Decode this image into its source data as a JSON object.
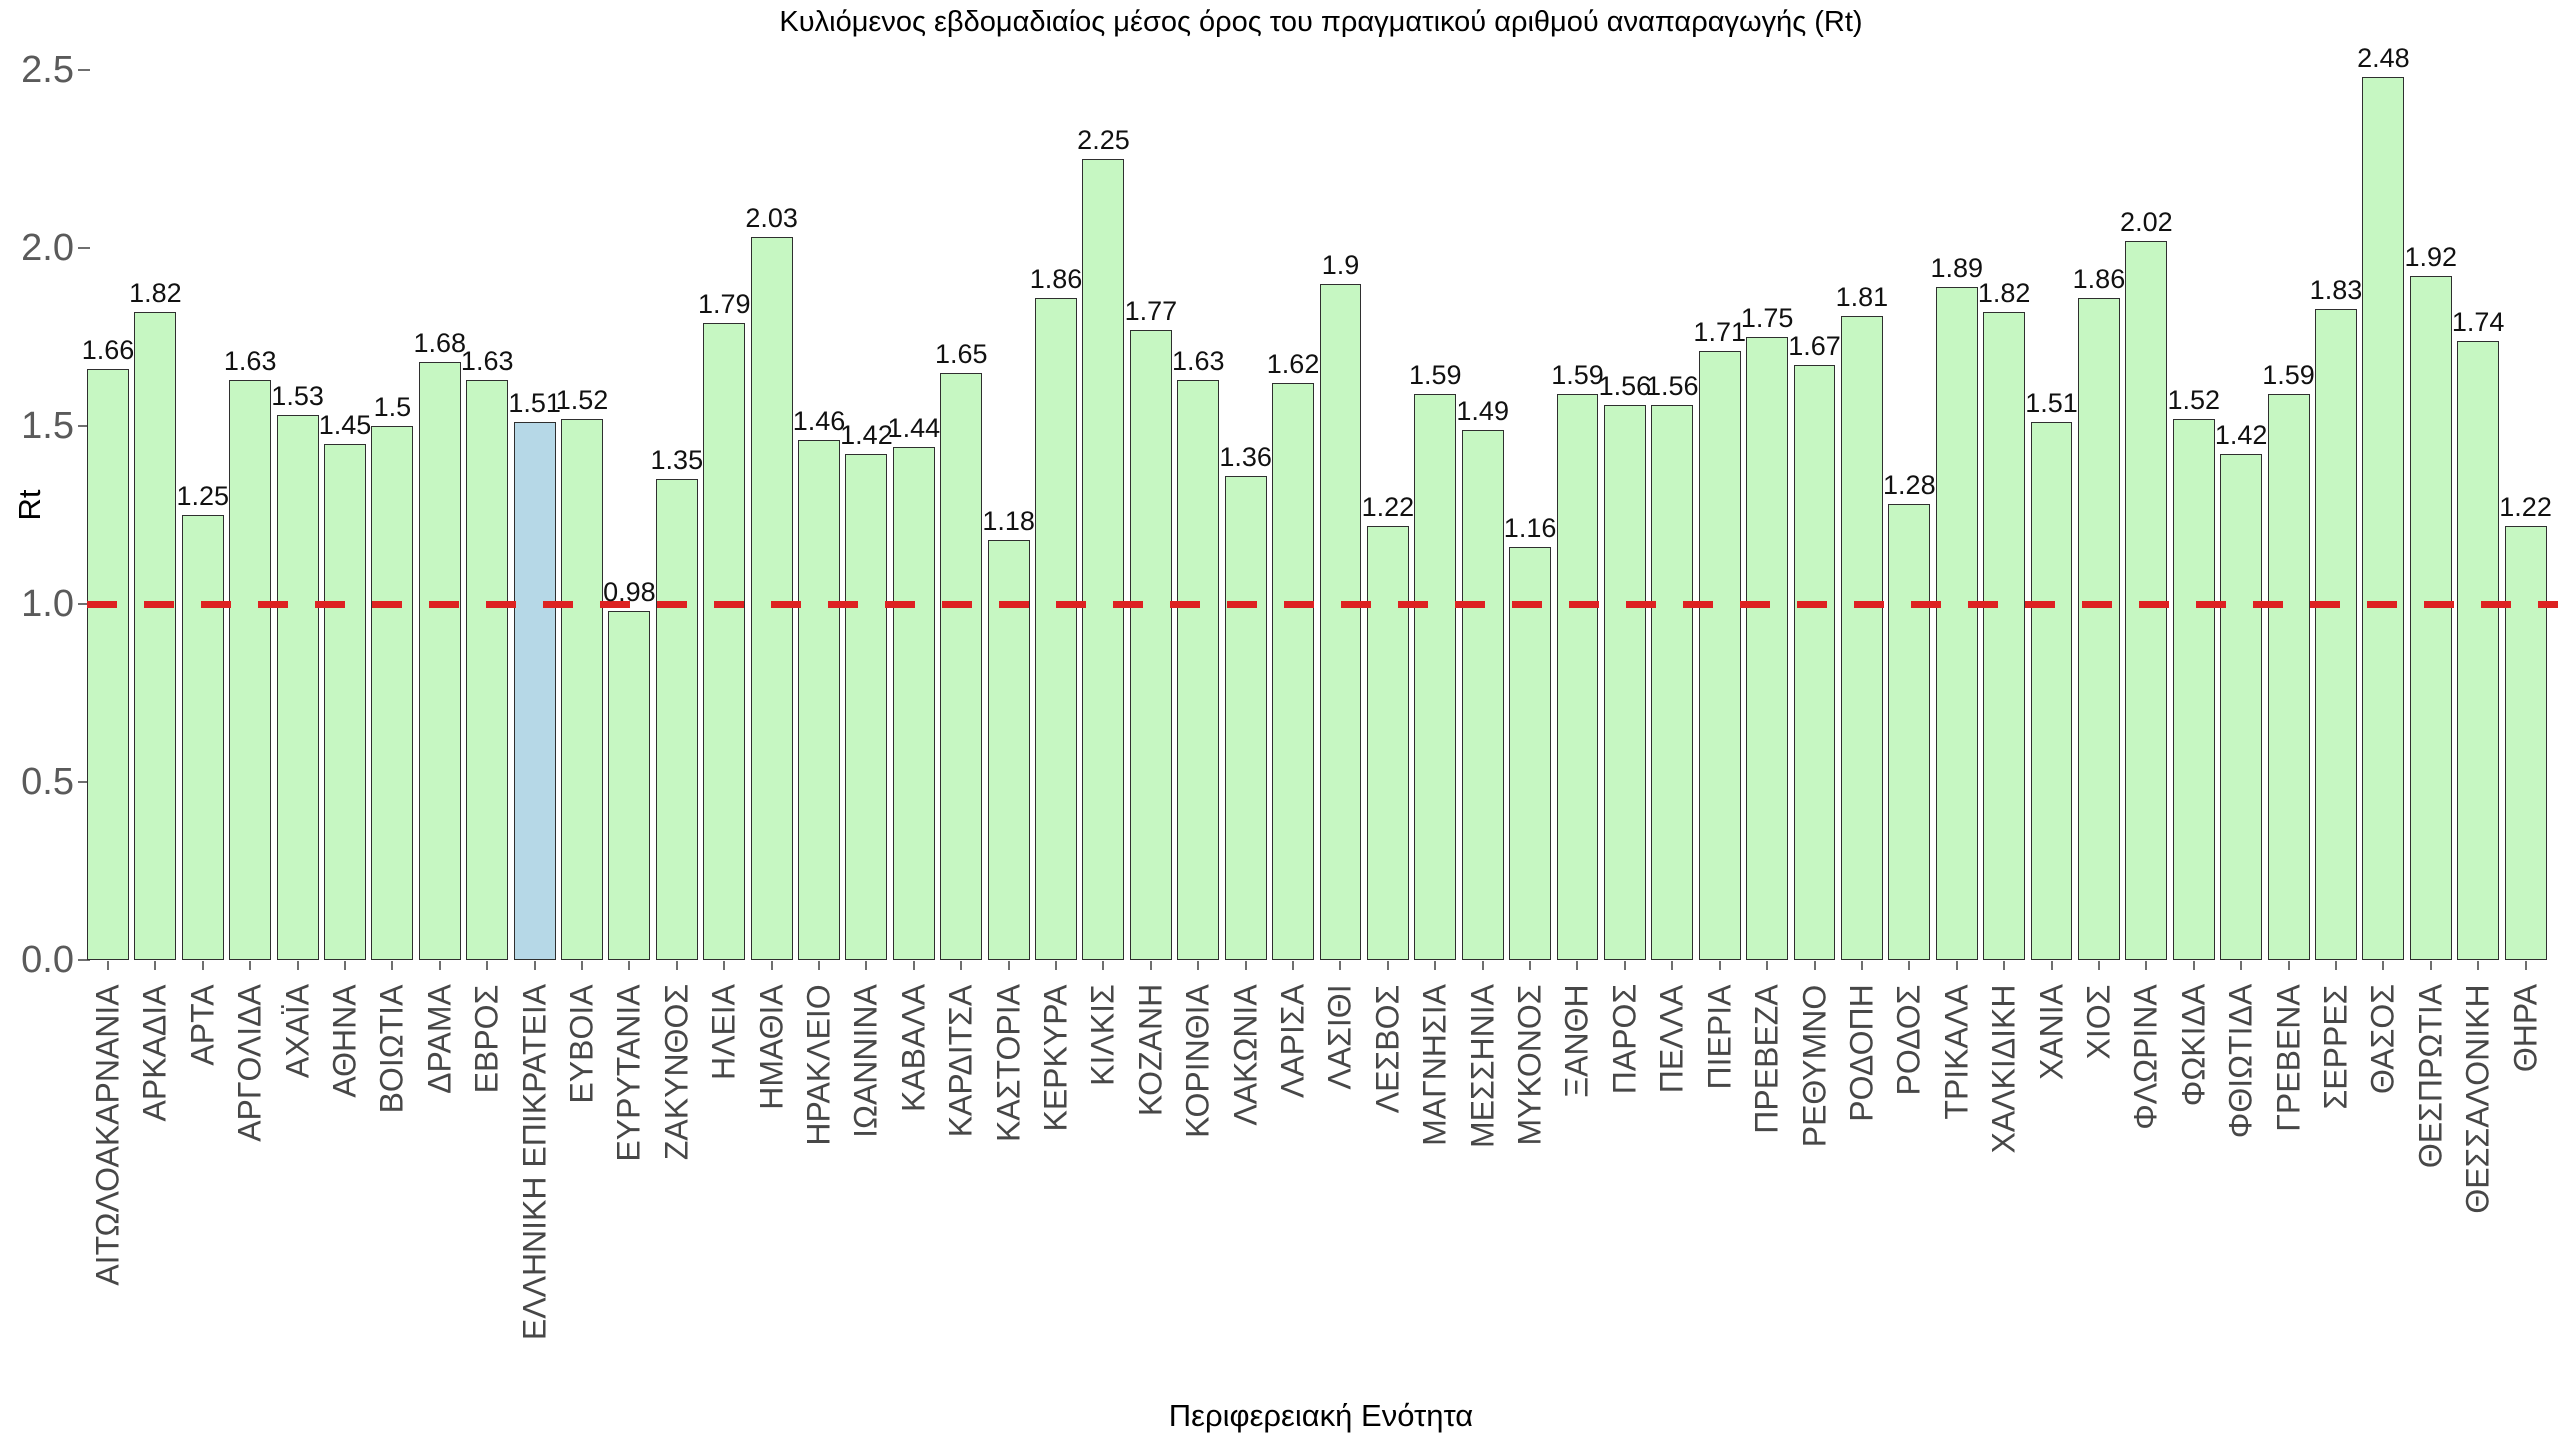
{
  "chart_data": {
    "type": "bar",
    "title": "Κυλιόμενος εβδομαδιαίος μέσος όρος του πραγματικού αριθμού αναπαραγωγής (Rt)",
    "xlabel": "Περιφερειακή Ενότητα",
    "ylabel": "Rt",
    "ylim": [
      0,
      2.5
    ],
    "yticks": [
      0.0,
      0.5,
      1.0,
      1.5,
      2.0,
      2.5
    ],
    "grid": false,
    "legend": null,
    "reference_line": {
      "y": 1.0,
      "style": "dashed",
      "color": "#dd2222"
    },
    "colors": {
      "bar_default": "#c6f7c2",
      "bar_highlight": "#b6d8e7",
      "bar_border": "#2f2f2f",
      "refline": "#dd2222"
    },
    "highlight_category": "ΕΛΛΗΝΙΚΗ ΕΠΙΚΡΑΤΕΙΑ",
    "categories": [
      "ΑΙΤΩΛΟΑΚΑΡΝΑΝΙΑ",
      "ΑΡΚΑΔΙΑ",
      "ΑΡΤΑ",
      "ΑΡΓΟΛΙΔΑ",
      "ΑΧΑΪΑ",
      "ΑΘΗΝΑ",
      "ΒΟΙΩΤΙΑ",
      "ΔΡΑΜΑ",
      "ΕΒΡΟΣ",
      "ΕΛΛΗΝΙΚΗ ΕΠΙΚΡΑΤΕΙΑ",
      "ΕΥΒΟΙΑ",
      "ΕΥΡΥΤΑΝΙΑ",
      "ΖΑΚΥΝΘΟΣ",
      "ΗΛΕΙΑ",
      "ΗΜΑΘΙΑ",
      "ΗΡΑΚΛΕΙΟ",
      "ΙΩΑΝΝΙΝΑ",
      "ΚΑΒΑΛΑ",
      "ΚΑΡΔΙΤΣΑ",
      "ΚΑΣΤΟΡΙΑ",
      "ΚΕΡΚΥΡΑ",
      "ΚΙΛΚΙΣ",
      "ΚΟΖΑΝΗ",
      "ΚΟΡΙΝΘΙΑ",
      "ΛΑΚΩΝΙΑ",
      "ΛΑΡΙΣΑ",
      "ΛΑΣΙΘΙ",
      "ΛΕΣΒΟΣ",
      "ΜΑΓΝΗΣΙΑ",
      "ΜΕΣΣΗΝΙΑ",
      "ΜΥΚΟΝΟΣ",
      "ΞΑΝΘΗ",
      "ΠΑΡΟΣ",
      "ΠΕΛΛΑ",
      "ΠΙΕΡΙΑ",
      "ΠΡΕΒΕΖΑ",
      "ΡΕΘΥΜΝΟ",
      "ΡΟΔΟΠΗ",
      "ΡΟΔΟΣ",
      "ΤΡΙΚΑΛΑ",
      "ΧΑΛΚΙΔΙΚΗ",
      "ΧΑΝΙΑ",
      "ΧΙΟΣ",
      "ΦΛΩΡΙΝΑ",
      "ΦΩΚΙΔΑ",
      "ΦΘΙΩΤΙΔΑ",
      "ΓΡΕΒΕΝΑ",
      "ΣΕΡΡΕΣ",
      "ΘΑΣΟΣ",
      "ΘΕΣΠΡΩΤΙΑ",
      "ΘΕΣΣΑΛΟΝΙΚΗ",
      "ΘΗΡΑ"
    ],
    "values": [
      1.66,
      1.82,
      1.25,
      1.63,
      1.53,
      1.45,
      1.5,
      1.68,
      1.63,
      1.51,
      1.52,
      0.98,
      1.35,
      1.79,
      2.03,
      1.46,
      1.42,
      1.44,
      1.65,
      1.18,
      1.86,
      2.25,
      1.77,
      1.63,
      1.36,
      1.62,
      1.9,
      1.22,
      1.59,
      1.49,
      1.16,
      1.59,
      1.56,
      1.56,
      1.71,
      1.75,
      1.67,
      1.81,
      1.28,
      1.89,
      1.82,
      1.51,
      1.86,
      2.02,
      1.52,
      1.42,
      1.59,
      1.83,
      2.48,
      1.92,
      1.74,
      1.22
    ]
  }
}
